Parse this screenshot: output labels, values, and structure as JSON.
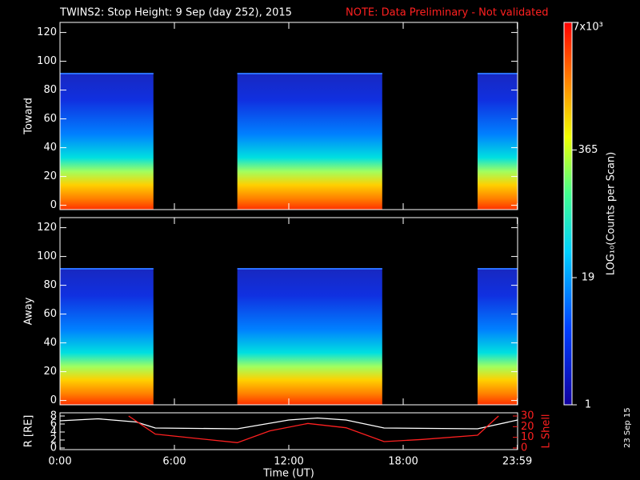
{
  "chart_data": {
    "type": "spectrogram",
    "title": "TWINS2: Stop Height:  9 Sep (day 252), 2015",
    "note": "NOTE: Data Preliminary - Not validated",
    "panels": [
      {
        "ylabel": "Toward"
      },
      {
        "ylabel": "Away"
      }
    ],
    "ylim": [
      -3,
      127
    ],
    "yticks": [
      0,
      20,
      40,
      60,
      80,
      100,
      120
    ],
    "data_intervals": [
      [
        0,
        4.9
      ],
      [
        9.3,
        16.9
      ],
      [
        21.9,
        24
      ]
    ],
    "cutoff": 92,
    "colorbar": {
      "label": "LOG₁₀(Counts per Scan)",
      "log": true,
      "lim": [
        1,
        7000
      ],
      "ticks": [
        1,
        19,
        365,
        {
          "value": 7000,
          "label": "7x10³"
        }
      ]
    },
    "xlim": [
      0,
      24
    ],
    "xticks": [
      {
        "value": 0,
        "label": "0:00"
      },
      {
        "value": 6,
        "label": "6:00"
      },
      {
        "value": 12,
        "label": "12:00"
      },
      {
        "value": 18,
        "label": "18:00"
      },
      {
        "value": 23.983,
        "label": "23:59"
      }
    ],
    "xlabel": "Time (UT)",
    "orbit": {
      "ylabel": "R [RE]",
      "ylim": [
        -0.4,
        8.8
      ],
      "yticks": [
        0,
        2,
        4,
        6,
        8
      ],
      "y2label": "L Shell",
      "y2lim": [
        -1.5,
        33
      ],
      "y2ticks": [
        0,
        10,
        20,
        30
      ],
      "series": [
        {
          "name": "R",
          "color": "#ffffff",
          "x": [
            0,
            2,
            4,
            5,
            9.3,
            12,
            13.5,
            15,
            17,
            21.9,
            24
          ],
          "values": [
            6.8,
            7.3,
            6.5,
            5,
            4.8,
            7,
            7.5,
            7,
            5,
            4.8,
            7
          ]
        },
        {
          "name": "L Shell",
          "color": "#ff2020",
          "axis": "y2",
          "x": [
            3.6,
            5,
            9.3,
            11,
            13,
            15,
            17,
            19,
            21.9,
            23
          ],
          "values": [
            30,
            13,
            5,
            16,
            23,
            19,
            6,
            8,
            12,
            30
          ]
        }
      ]
    },
    "date": "23 Sep 15"
  }
}
